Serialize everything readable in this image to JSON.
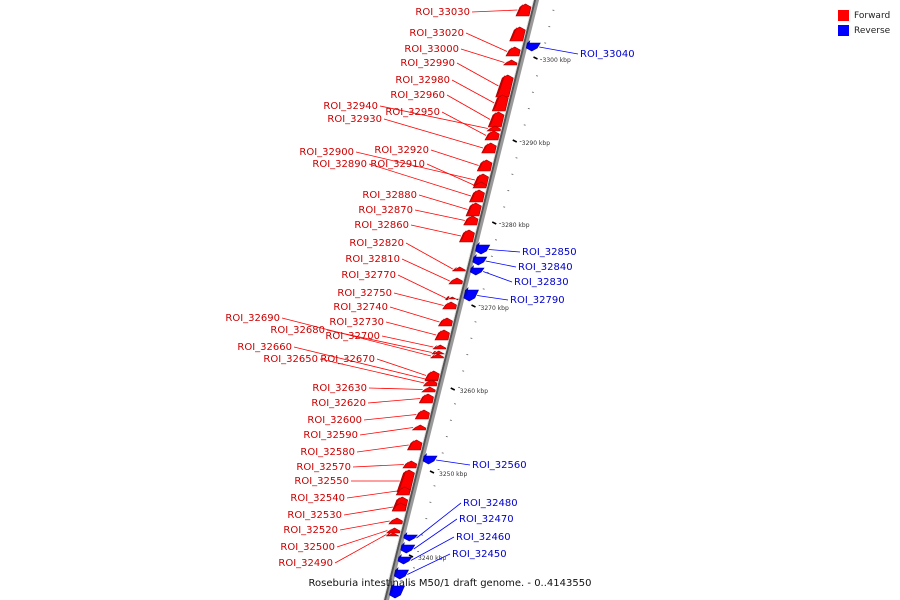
{
  "legend": {
    "forward_label": "Forward",
    "reverse_label": "Reverse",
    "forward_color": "#ff0000",
    "reverse_color": "#0000ff"
  },
  "caption": "Roseburia intestinalis M50/1 draft genome. - 0..4143550",
  "scale_ticks": [
    "3300 kbp",
    "3290 kbp",
    "3280 kbp",
    "3270 kbp",
    "3260 kbp",
    "3250 kbp",
    "3240 kbp"
  ],
  "features": [
    {
      "label": "ROI_33030",
      "strand": "forward"
    },
    {
      "label": "ROI_33020",
      "strand": "forward"
    },
    {
      "label": "ROI_33000",
      "strand": "forward"
    },
    {
      "label": "ROI_32990",
      "strand": "forward"
    },
    {
      "label": "ROI_32980",
      "strand": "forward"
    },
    {
      "label": "ROI_32960",
      "strand": "forward"
    },
    {
      "label": "ROI_32940",
      "strand": "forward"
    },
    {
      "label": "ROI_32950",
      "strand": "forward"
    },
    {
      "label": "ROI_32930",
      "strand": "forward"
    },
    {
      "label": "ROI_32920",
      "strand": "forward"
    },
    {
      "label": "ROI_32900",
      "strand": "forward"
    },
    {
      "label": "ROI_32910",
      "strand": "forward"
    },
    {
      "label": "ROI_32890",
      "strand": "forward"
    },
    {
      "label": "ROI_32880",
      "strand": "forward"
    },
    {
      "label": "ROI_32870",
      "strand": "forward"
    },
    {
      "label": "ROI_32860",
      "strand": "forward"
    },
    {
      "label": "ROI_32820",
      "strand": "forward"
    },
    {
      "label": "ROI_32810",
      "strand": "forward"
    },
    {
      "label": "ROI_32770",
      "strand": "forward"
    },
    {
      "label": "ROI_32750",
      "strand": "forward"
    },
    {
      "label": "ROI_32740",
      "strand": "forward"
    },
    {
      "label": "ROI_32690",
      "strand": "forward"
    },
    {
      "label": "ROI_32730",
      "strand": "forward"
    },
    {
      "label": "ROI_32680",
      "strand": "forward"
    },
    {
      "label": "ROI_32700",
      "strand": "forward"
    },
    {
      "label": "ROI_32660",
      "strand": "forward"
    },
    {
      "label": "ROI_32650",
      "strand": "forward"
    },
    {
      "label": "ROI_32670",
      "strand": "forward"
    },
    {
      "label": "ROI_32630",
      "strand": "forward"
    },
    {
      "label": "ROI_32620",
      "strand": "forward"
    },
    {
      "label": "ROI_32600",
      "strand": "forward"
    },
    {
      "label": "ROI_32590",
      "strand": "forward"
    },
    {
      "label": "ROI_32580",
      "strand": "forward"
    },
    {
      "label": "ROI_32570",
      "strand": "forward"
    },
    {
      "label": "ROI_32550",
      "strand": "forward"
    },
    {
      "label": "ROI_32540",
      "strand": "forward"
    },
    {
      "label": "ROI_32530",
      "strand": "forward"
    },
    {
      "label": "ROI_32520",
      "strand": "forward"
    },
    {
      "label": "ROI_32500",
      "strand": "forward"
    },
    {
      "label": "ROI_32490",
      "strand": "forward"
    },
    {
      "label": "ROI_33040",
      "strand": "reverse"
    },
    {
      "label": "ROI_32850",
      "strand": "reverse"
    },
    {
      "label": "ROI_32840",
      "strand": "reverse"
    },
    {
      "label": "ROI_32830",
      "strand": "reverse"
    },
    {
      "label": "ROI_32790",
      "strand": "reverse"
    },
    {
      "label": "ROI_32560",
      "strand": "reverse"
    },
    {
      "label": "ROI_32480",
      "strand": "reverse"
    },
    {
      "label": "ROI_32470",
      "strand": "reverse"
    },
    {
      "label": "ROI_32460",
      "strand": "reverse"
    },
    {
      "label": "ROI_32450",
      "strand": "reverse"
    }
  ]
}
